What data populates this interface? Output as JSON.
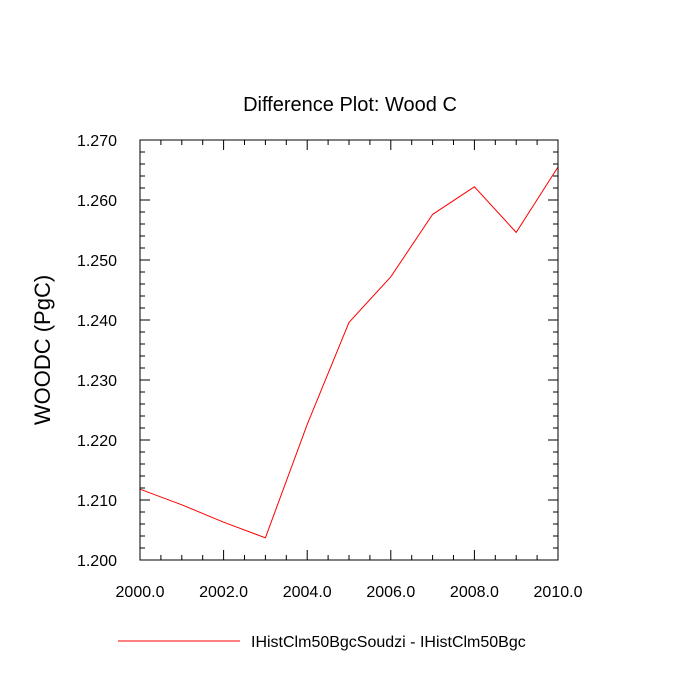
{
  "chart_data": {
    "type": "line",
    "title": "Difference Plot: Wood C",
    "xlabel": "",
    "ylabel": "WOODC  (PgC)",
    "xlim": [
      2000,
      2010
    ],
    "ylim": [
      1.2,
      1.27
    ],
    "x_ticks": [
      2000,
      2002,
      2004,
      2006,
      2008,
      2010
    ],
    "x_tick_labels": [
      "2000.0",
      "2002.0",
      "2004.0",
      "2006.0",
      "2008.0",
      "2010.0"
    ],
    "y_ticks": [
      1.2,
      1.21,
      1.22,
      1.23,
      1.24,
      1.25,
      1.26,
      1.27
    ],
    "y_tick_labels": [
      "1.200",
      "1.210",
      "1.220",
      "1.230",
      "1.240",
      "1.250",
      "1.260",
      "1.270"
    ],
    "grid": false,
    "legend_position": "bottom",
    "series": [
      {
        "name": "IHistClm50BgcSoudzi - IHistClm50Bgc",
        "color": "#ff0000",
        "x": [
          2000,
          2001,
          2002,
          2003,
          2004,
          2005,
          2006,
          2007,
          2008,
          2009,
          2010
        ],
        "values": [
          1.2118,
          1.2092,
          1.2063,
          1.2037,
          1.2226,
          1.2396,
          1.2472,
          1.2576,
          1.2622,
          1.2546,
          1.2655
        ]
      }
    ]
  }
}
